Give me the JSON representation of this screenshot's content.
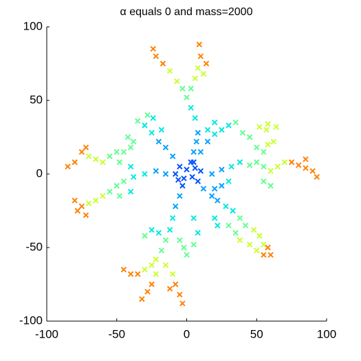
{
  "chart_data": {
    "type": "scatter",
    "title": "α equals 0 and mass=2000",
    "xlim": [
      -100,
      100
    ],
    "ylim": [
      -100,
      100
    ],
    "xticks": [
      -100,
      -50,
      0,
      50,
      100
    ],
    "yticks": [
      -100,
      -50,
      0,
      50,
      100
    ],
    "marker": "x",
    "series": [
      {
        "color": "#0050ff",
        "x": [
          3,
          5,
          -5,
          10,
          8,
          -3,
          -8,
          0,
          -2,
          4,
          6,
          -6
        ],
        "y": [
          8,
          8,
          5,
          2,
          -5,
          -8,
          0,
          3,
          -3,
          -2,
          4,
          -4
        ]
      },
      {
        "color": "#00a0ff",
        "x": [
          5,
          7,
          8,
          -10,
          -15,
          -20,
          10,
          15,
          18,
          25,
          12,
          18,
          22,
          -5,
          -8,
          -15,
          -22,
          20,
          25
        ],
        "y": [
          15,
          22,
          28,
          12,
          18,
          22,
          15,
          22,
          0,
          3,
          -10,
          -15,
          -18,
          -15,
          -22,
          0,
          2,
          -10,
          -8
        ]
      },
      {
        "color": "#00e8e0",
        "x": [
          6,
          3,
          -25,
          -30,
          -18,
          -24,
          20,
          25,
          30,
          15,
          20,
          32,
          38,
          30,
          28,
          33,
          20,
          22,
          -10,
          -12,
          5,
          8,
          -30,
          -38,
          -40,
          -40,
          -20,
          -25
        ],
        "y": [
          38,
          45,
          28,
          33,
          30,
          38,
          27,
          30,
          33,
          30,
          35,
          5,
          8,
          -5,
          -22,
          -25,
          -30,
          -35,
          -30,
          -38,
          -30,
          -40,
          0,
          -2,
          5,
          -12,
          -40,
          -38
        ]
      },
      {
        "color": "#60ff90",
        "x": [
          0,
          -3,
          3,
          -28,
          -35,
          35,
          45,
          50,
          55,
          55,
          60,
          40,
          45,
          50,
          55,
          38,
          42,
          30,
          35,
          5,
          -5,
          -2,
          0,
          -15,
          -18,
          -30,
          -45,
          -50,
          -55,
          -48,
          -48,
          -55,
          -50,
          -45,
          -40,
          -38,
          -42
        ],
        "y": [
          52,
          58,
          58,
          40,
          36,
          35,
          6,
          8,
          5,
          -5,
          -8,
          28,
          25,
          18,
          15,
          -30,
          -35,
          -35,
          -40,
          -48,
          -45,
          -50,
          -55,
          -45,
          -52,
          -42,
          -5,
          -8,
          -12,
          -15,
          8,
          12,
          15,
          15,
          18,
          22,
          25
        ]
      },
      {
        "color": "#c8ff30",
        "x": [
          -7,
          -12,
          6,
          8,
          12,
          60,
          65,
          70,
          57,
          52,
          58,
          64,
          62,
          58,
          48,
          52,
          45,
          38,
          50,
          55,
          -22,
          -25,
          -30,
          -22,
          -15,
          -10,
          -60,
          -65,
          -70,
          -60,
          -65,
          -70
        ],
        "y": [
          63,
          70,
          65,
          72,
          68,
          2,
          5,
          8,
          30,
          32,
          34,
          32,
          22,
          20,
          -38,
          -42,
          -48,
          -45,
          -52,
          -48,
          -58,
          -62,
          -65,
          -68,
          -62,
          -68,
          -15,
          -18,
          -20,
          8,
          10,
          12
        ]
      },
      {
        "color": "#ff8000",
        "x": [
          -17,
          -22,
          -24,
          10,
          9,
          14,
          75,
          80,
          85,
          90,
          93,
          85,
          58,
          55,
          60,
          -35,
          -40,
          -45,
          -25,
          -28,
          -32,
          -8,
          -5,
          -3,
          -12,
          -75,
          -80,
          -72,
          -78,
          -75,
          -80,
          -85,
          -72
        ],
        "y": [
          75,
          80,
          85,
          80,
          88,
          75,
          8,
          6,
          4,
          2,
          -2,
          10,
          -50,
          -55,
          -55,
          -68,
          -68,
          -65,
          -75,
          -80,
          -85,
          -75,
          -82,
          -88,
          -78,
          -22,
          -18,
          -28,
          -25,
          15,
          8,
          5,
          18
        ]
      }
    ]
  }
}
